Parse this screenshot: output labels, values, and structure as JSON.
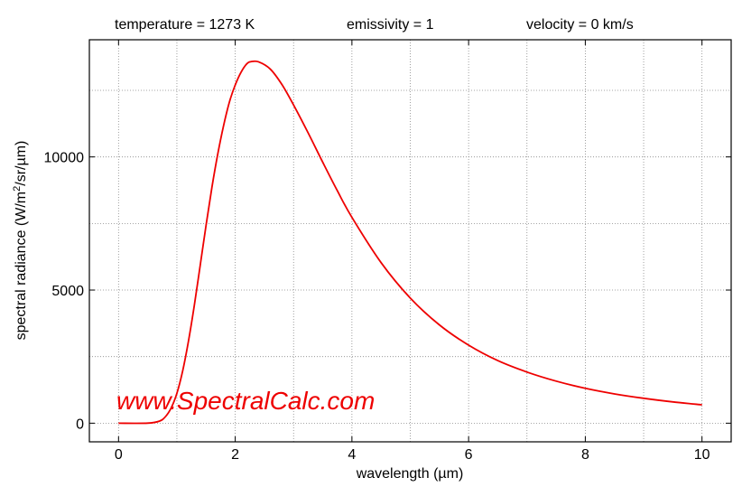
{
  "header": {
    "temperature": "temperature = 1273 K",
    "emissivity": "emissivity = 1",
    "velocity": "velocity = 0 km/s"
  },
  "watermark": "www.SpectralCalc.com",
  "colors": {
    "curve": "#ee0000",
    "axes": "#000000",
    "grid": "#888888"
  },
  "chart_data": {
    "type": "line",
    "xlabel": "wavelength (µm)",
    "ylabel_main": "spectral radiance (W/m",
    "ylabel_sup": "2",
    "ylabel_tail": "/sr/µm)",
    "xlim": [
      -0.5,
      10.5
    ],
    "ylim": [
      -700,
      14400
    ],
    "xticks": [
      0,
      2,
      4,
      6,
      8,
      10
    ],
    "yticks": [
      0,
      5000,
      10000
    ],
    "xgrid": [
      0,
      1,
      2,
      3,
      4,
      5,
      6,
      7,
      8,
      9,
      10
    ],
    "ygrid": [
      0,
      2500,
      5000,
      7500,
      10000,
      12500
    ],
    "grid": true,
    "series": [
      {
        "x": [
          0,
          0.5,
          0.7,
          0.8,
          0.9,
          1.0,
          1.1,
          1.2,
          1.3,
          1.4,
          1.5,
          1.6,
          1.7,
          1.8,
          1.9,
          2.0,
          2.1,
          2.2,
          2.276,
          2.4,
          2.6,
          2.8,
          3.0,
          3.25,
          3.5,
          3.75,
          4.0,
          4.5,
          5.0,
          5.5,
          6.0,
          6.5,
          7.0,
          7.5,
          8.0,
          8.5,
          9.0,
          9.5,
          10.0
        ],
        "y": [
          0,
          1.8,
          76,
          235,
          564,
          1120,
          1970,
          3100,
          4440,
          5930,
          7430,
          8850,
          10100,
          11170,
          12060,
          12700,
          13180,
          13500,
          13580,
          13570,
          13300,
          12720,
          11950,
          10900,
          9800,
          8730,
          7730,
          6030,
          4700,
          3690,
          2930,
          2350,
          1920,
          1580,
          1310,
          1100,
          935,
          800,
          690
        ]
      }
    ]
  }
}
